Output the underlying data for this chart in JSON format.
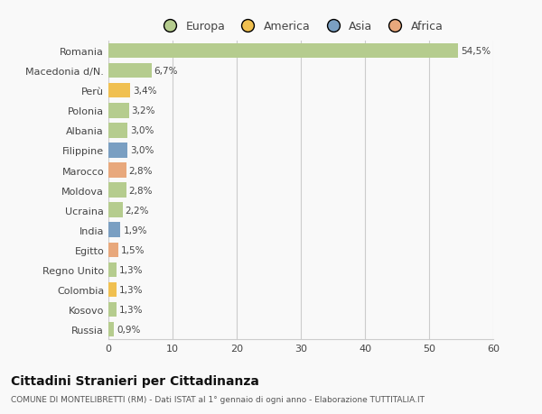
{
  "categories": [
    "Romania",
    "Macedonia d/N.",
    "Perù",
    "Polonia",
    "Albania",
    "Filippine",
    "Marocco",
    "Moldova",
    "Ucraina",
    "India",
    "Egitto",
    "Regno Unito",
    "Colombia",
    "Kosovo",
    "Russia"
  ],
  "values": [
    54.5,
    6.7,
    3.4,
    3.2,
    3.0,
    3.0,
    2.8,
    2.8,
    2.2,
    1.9,
    1.5,
    1.3,
    1.3,
    1.3,
    0.9
  ],
  "labels": [
    "54,5%",
    "6,7%",
    "3,4%",
    "3,2%",
    "3,0%",
    "3,0%",
    "2,8%",
    "2,8%",
    "2,2%",
    "1,9%",
    "1,5%",
    "1,3%",
    "1,3%",
    "1,3%",
    "0,9%"
  ],
  "colors": [
    "#b5cc8e",
    "#b5cc8e",
    "#f0c050",
    "#b5cc8e",
    "#b5cc8e",
    "#7a9fc2",
    "#e8a87c",
    "#b5cc8e",
    "#b5cc8e",
    "#7a9fc2",
    "#e8a87c",
    "#b5cc8e",
    "#f0c050",
    "#b5cc8e",
    "#b5cc8e"
  ],
  "legend": {
    "Europa": "#b5cc8e",
    "America": "#f0c050",
    "Asia": "#7a9fc2",
    "Africa": "#e8a87c"
  },
  "xlim": [
    0,
    60
  ],
  "xticks": [
    0,
    10,
    20,
    30,
    40,
    50,
    60
  ],
  "title": "Cittadini Stranieri per Cittadinanza",
  "subtitle": "COMUNE DI MONTELIBRETTI (RM) - Dati ISTAT al 1° gennaio di ogni anno - Elaborazione TUTTITALIA.IT",
  "background_color": "#f9f9f9",
  "grid_color": "#cccccc"
}
